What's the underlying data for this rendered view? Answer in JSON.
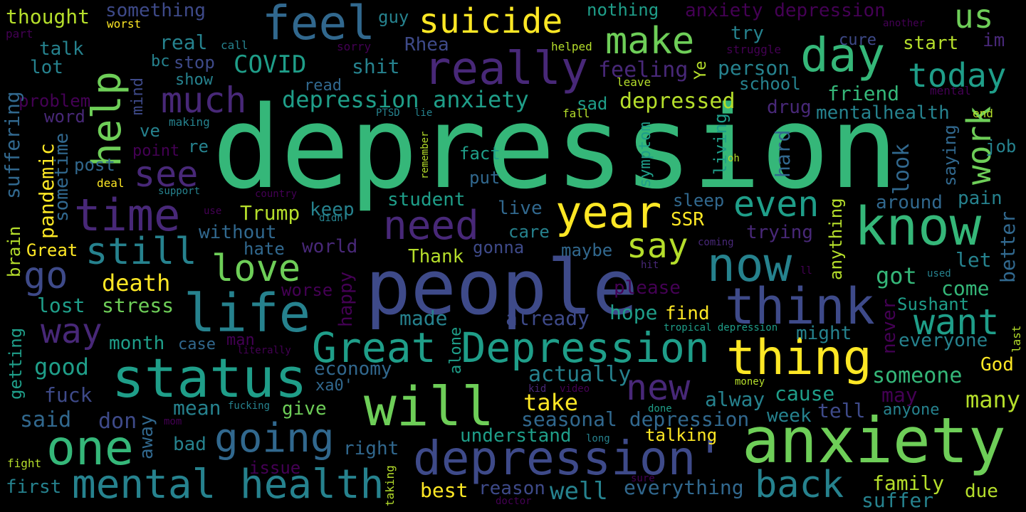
{
  "palette": {
    "background": "#000000",
    "dark_purple": "#440154",
    "indigo": "#482878",
    "violet": "#3e4a89",
    "blue": "#31688e",
    "teal_blue": "#26828e",
    "teal": "#1f9e89",
    "green": "#35b779",
    "light_green": "#6ece58",
    "lime": "#b5de2b",
    "yellow": "#fde725"
  },
  "words": [
    {
      "text": "depression",
      "color": "#35b779"
    },
    {
      "text": "people",
      "color": "#3e4a89"
    },
    {
      "text": "anxiety",
      "color": "#6ece58"
    },
    {
      "text": "Great Depression",
      "color": "#1f9e89"
    },
    {
      "text": "status",
      "color": "#1f9e89"
    },
    {
      "text": "depression'",
      "color": "#3e4a89"
    },
    {
      "text": "mental health",
      "color": "#26828e"
    },
    {
      "text": "know",
      "color": "#35b779"
    },
    {
      "text": "think",
      "color": "#3e4a89"
    },
    {
      "text": "thing",
      "color": "#fde725"
    },
    {
      "text": "will",
      "color": "#6ece58"
    },
    {
      "text": "life",
      "color": "#26828e"
    },
    {
      "text": "one",
      "color": "#35b779"
    },
    {
      "text": "going",
      "color": "#31688e"
    },
    {
      "text": "really",
      "color": "#482878"
    },
    {
      "text": "day",
      "color": "#35b779"
    },
    {
      "text": "now",
      "color": "#26828e"
    },
    {
      "text": "feel",
      "color": "#31688e"
    },
    {
      "text": "year",
      "color": "#fde725"
    },
    {
      "text": "time",
      "color": "#482878"
    },
    {
      "text": "need",
      "color": "#482878"
    },
    {
      "text": "make",
      "color": "#6ece58"
    },
    {
      "text": "suicide",
      "color": "#fde725"
    },
    {
      "text": "help",
      "color": "#6ece58"
    },
    {
      "text": "today",
      "color": "#1f9e89"
    },
    {
      "text": "much",
      "color": "#482878"
    },
    {
      "text": "still",
      "color": "#26828e"
    },
    {
      "text": "love",
      "color": "#6ece58"
    },
    {
      "text": "way",
      "color": "#482878"
    },
    {
      "text": "back",
      "color": "#26828e"
    },
    {
      "text": "work",
      "color": "#6ece58"
    },
    {
      "text": "want",
      "color": "#1f9e89"
    },
    {
      "text": "even",
      "color": "#1f9e89"
    },
    {
      "text": "see",
      "color": "#482878"
    },
    {
      "text": "say",
      "color": "#b5de2b"
    },
    {
      "text": "go",
      "color": "#3e4a89"
    },
    {
      "text": "new",
      "color": "#482878"
    },
    {
      "text": "us",
      "color": "#6ece58"
    },
    {
      "text": "depression anxiety",
      "color": "#1f9e89"
    },
    {
      "text": "seasonal depression",
      "color": "#31688e"
    },
    {
      "text": "anxiety depression",
      "color": "#440154"
    },
    {
      "text": "depressed",
      "color": "#b5de2b"
    },
    {
      "text": "COVID",
      "color": "#1f9e89"
    },
    {
      "text": "Trump",
      "color": "#b5de2b"
    },
    {
      "text": "good",
      "color": "#1f9e89"
    },
    {
      "text": "death",
      "color": "#fde725"
    },
    {
      "text": "stress",
      "color": "#6ece58"
    },
    {
      "text": "lost",
      "color": "#1f9e89"
    },
    {
      "text": "month",
      "color": "#1f9e89"
    },
    {
      "text": "case",
      "color": "#31688e"
    },
    {
      "text": "fuck",
      "color": "#3e4a89"
    },
    {
      "text": "said",
      "color": "#31688e"
    },
    {
      "text": "don",
      "color": "#3e4a89"
    },
    {
      "text": "first",
      "color": "#26828e"
    },
    {
      "text": "bad",
      "color": "#26828e"
    },
    {
      "text": "mean",
      "color": "#26828e"
    },
    {
      "text": "give",
      "color": "#6ece58"
    },
    {
      "text": "right",
      "color": "#31688e"
    },
    {
      "text": "issue",
      "color": "#440154"
    },
    {
      "text": "best",
      "color": "#fde725"
    },
    {
      "text": "reason",
      "color": "#3e4a89"
    },
    {
      "text": "well",
      "color": "#26828e"
    },
    {
      "text": "everything",
      "color": "#31688e"
    },
    {
      "text": "family",
      "color": "#b5de2b"
    },
    {
      "text": "suffer",
      "color": "#26828e"
    },
    {
      "text": "due",
      "color": "#b5de2b"
    },
    {
      "text": "talking",
      "color": "#fde725"
    },
    {
      "text": "understand",
      "color": "#1f9e89"
    },
    {
      "text": "take",
      "color": "#fde725"
    },
    {
      "text": "actually",
      "color": "#26828e"
    },
    {
      "text": "cause",
      "color": "#1f9e89"
    },
    {
      "text": "week",
      "color": "#26828e"
    },
    {
      "text": "tell",
      "color": "#3e4a89"
    },
    {
      "text": "alway",
      "color": "#26828e"
    },
    {
      "text": "someone",
      "color": "#35b779"
    },
    {
      "text": "may",
      "color": "#440154"
    },
    {
      "text": "many",
      "color": "#b5de2b"
    },
    {
      "text": "anyone",
      "color": "#26828e"
    },
    {
      "text": "God",
      "color": "#fde725"
    },
    {
      "text": "everyone",
      "color": "#26828e"
    },
    {
      "text": "might",
      "color": "#26828e"
    },
    {
      "text": "Sushant",
      "color": "#1f9e89"
    },
    {
      "text": "come",
      "color": "#35b779"
    },
    {
      "text": "let",
      "color": "#26828e"
    },
    {
      "text": "got",
      "color": "#35b779"
    },
    {
      "text": "pain",
      "color": "#26828e"
    },
    {
      "text": "around",
      "color": "#31688e"
    },
    {
      "text": "job",
      "color": "#26828e"
    },
    {
      "text": "friend",
      "color": "#35b779"
    },
    {
      "text": "mentalhealth",
      "color": "#26828e"
    },
    {
      "text": "drug",
      "color": "#482878"
    },
    {
      "text": "person",
      "color": "#26828e"
    },
    {
      "text": "school",
      "color": "#26828e"
    },
    {
      "text": "start",
      "color": "#b5de2b"
    },
    {
      "text": "cure",
      "color": "#3e4a89"
    },
    {
      "text": "try",
      "color": "#26828e"
    },
    {
      "text": "im",
      "color": "#482878"
    },
    {
      "text": "nothing",
      "color": "#1f9e89"
    },
    {
      "text": "something",
      "color": "#3e4a89"
    },
    {
      "text": "thought",
      "color": "#b5de2b"
    },
    {
      "text": "talk",
      "color": "#26828e"
    },
    {
      "text": "lot",
      "color": "#26828e"
    },
    {
      "text": "real",
      "color": "#26828e"
    },
    {
      "text": "stop",
      "color": "#3e4a89"
    },
    {
      "text": "bc",
      "color": "#26828e"
    },
    {
      "text": "show",
      "color": "#26828e"
    },
    {
      "text": "shit",
      "color": "#26828e"
    },
    {
      "text": "read",
      "color": "#31688e"
    },
    {
      "text": "Rhea",
      "color": "#3e4a89"
    },
    {
      "text": "guy",
      "color": "#26828e"
    },
    {
      "text": "feeling",
      "color": "#482878"
    },
    {
      "text": "sad",
      "color": "#1f9e89"
    },
    {
      "text": "problem",
      "color": "#440154"
    },
    {
      "text": "word",
      "color": "#482878"
    },
    {
      "text": "ve",
      "color": "#26828e"
    },
    {
      "text": "re",
      "color": "#26828e"
    },
    {
      "text": "point",
      "color": "#440154"
    },
    {
      "text": "post",
      "color": "#31688e"
    },
    {
      "text": "fact",
      "color": "#1f9e89"
    },
    {
      "text": "put",
      "color": "#31688e"
    },
    {
      "text": "student",
      "color": "#1f9e89"
    },
    {
      "text": "keep",
      "color": "#26828e"
    },
    {
      "text": "without",
      "color": "#31688e"
    },
    {
      "text": "hate",
      "color": "#31688e"
    },
    {
      "text": "world",
      "color": "#482878"
    },
    {
      "text": "live",
      "color": "#31688e"
    },
    {
      "text": "care",
      "color": "#26828e"
    },
    {
      "text": "gonna",
      "color": "#3e4a89"
    },
    {
      "text": "maybe",
      "color": "#31688e"
    },
    {
      "text": "sleep",
      "color": "#31688e"
    },
    {
      "text": "SSR",
      "color": "#fde725"
    },
    {
      "text": "trying",
      "color": "#482878"
    },
    {
      "text": "Thank",
      "color": "#b5de2b"
    },
    {
      "text": "Great",
      "color": "#fde725"
    },
    {
      "text": "please",
      "color": "#440154"
    },
    {
      "text": "hope",
      "color": "#1f9e89"
    },
    {
      "text": "find",
      "color": "#fde725"
    },
    {
      "text": "already",
      "color": "#3e4a89"
    },
    {
      "text": "made",
      "color": "#26828e"
    },
    {
      "text": "worse",
      "color": "#440154"
    },
    {
      "text": "economy",
      "color": "#31688e"
    },
    {
      "text": "xa0'",
      "color": "#31688e"
    },
    {
      "text": "man",
      "color": "#440154"
    },
    {
      "text": "sorry",
      "color": "#440154"
    },
    {
      "text": "helped",
      "color": "#b5de2b"
    },
    {
      "text": "call",
      "color": "#26828e"
    },
    {
      "text": "worst",
      "color": "#fde725"
    },
    {
      "text": "part",
      "color": "#440154"
    },
    {
      "text": "another",
      "color": "#440154"
    },
    {
      "text": "struggle",
      "color": "#440154"
    },
    {
      "text": "leave",
      "color": "#b5de2b"
    },
    {
      "text": "mental",
      "color": "#440154"
    },
    {
      "text": "end",
      "color": "#b5de2b"
    },
    {
      "text": "fall",
      "color": "#b5de2b"
    },
    {
      "text": "PTSD",
      "color": "#26828e"
    },
    {
      "text": "lie",
      "color": "#26828e"
    },
    {
      "text": "making",
      "color": "#26828e"
    },
    {
      "text": "deal",
      "color": "#fde725"
    },
    {
      "text": "support",
      "color": "#26828e"
    },
    {
      "text": "country",
      "color": "#440154"
    },
    {
      "text": "use",
      "color": "#440154"
    },
    {
      "text": "didn",
      "color": "#26828e"
    },
    {
      "text": "coming",
      "color": "#482878"
    },
    {
      "text": "hit",
      "color": "#482878"
    },
    {
      "text": "ll",
      "color": "#440154"
    },
    {
      "text": "used",
      "color": "#26828e"
    },
    {
      "text": "literally",
      "color": "#440154"
    },
    {
      "text": "tropical depression",
      "color": "#1f9e89"
    },
    {
      "text": "kid",
      "color": "#482878"
    },
    {
      "text": "video",
      "color": "#440154"
    },
    {
      "text": "money",
      "color": "#b5de2b"
    },
    {
      "text": "done",
      "color": "#1f9e89"
    },
    {
      "text": "long",
      "color": "#26828e"
    },
    {
      "text": "fucking",
      "color": "#26828e"
    },
    {
      "text": "mom",
      "color": "#440154"
    },
    {
      "text": "fight",
      "color": "#b5de2b"
    },
    {
      "text": "sure",
      "color": "#440154"
    },
    {
      "text": "doctor",
      "color": "#440154"
    },
    {
      "text": "oh",
      "color": "#b5de2b"
    },
    {
      "text": "mind",
      "color": "#3e4a89"
    },
    {
      "text": "suffering",
      "color": "#31688e"
    },
    {
      "text": "sometime",
      "color": "#31688e"
    },
    {
      "text": "pandemic",
      "color": "#fde725"
    },
    {
      "text": "brain",
      "color": "#b5de2b"
    },
    {
      "text": "getting",
      "color": "#1f9e89"
    },
    {
      "text": "happy",
      "color": "#440154"
    },
    {
      "text": "away",
      "color": "#31688e"
    },
    {
      "text": "alone",
      "color": "#1f9e89"
    },
    {
      "text": "taking",
      "color": "#b5de2b"
    },
    {
      "text": "remember",
      "color": "#b5de2b"
    },
    {
      "text": "symptom",
      "color": "#1f9e89"
    },
    {
      "text": "living",
      "color": "#1f9e89"
    },
    {
      "text": "hard",
      "color": "#31688e"
    },
    {
      "text": "look",
      "color": "#31688e"
    },
    {
      "text": "saying",
      "color": "#31688e"
    },
    {
      "text": "anything",
      "color": "#b5de2b"
    },
    {
      "text": "never",
      "color": "#440154"
    },
    {
      "text": "better",
      "color": "#31688e"
    },
    {
      "text": "last",
      "color": "#b5de2b"
    },
    {
      "text": "Ye",
      "color": "#b5de2b"
    }
  ]
}
